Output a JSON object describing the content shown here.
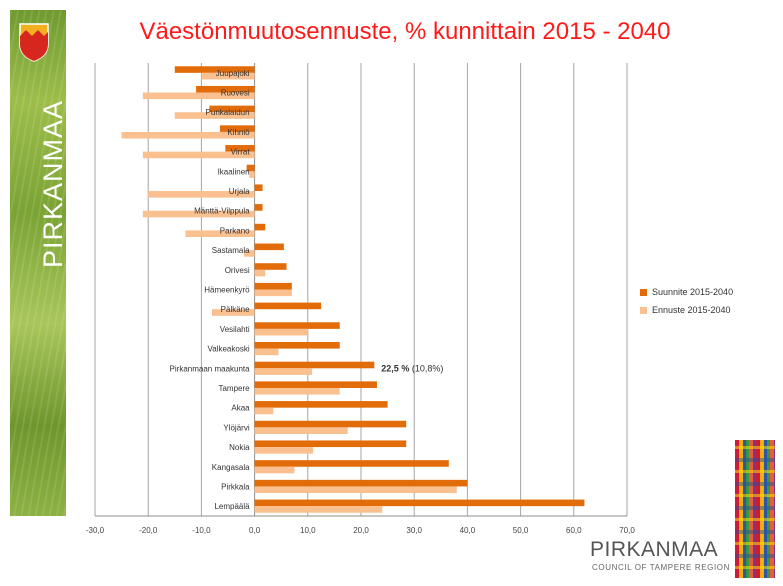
{
  "brand": {
    "side_text": "PIRKANMAA",
    "footer_name": "PIRKANMAA",
    "footer_subtitle": "COUNCIL OF TAMPERE REGION"
  },
  "colors": {
    "title": "#ff1a1a",
    "suunnite": "#e36c0a",
    "ennuste": "#fac090",
    "grid": "#a6a6a6"
  },
  "chart_data": {
    "type": "bar",
    "orientation": "horizontal",
    "title": "Väestönmuutosennuste, % kunnittain 2015 - 2040",
    "xlabel": "",
    "ylabel": "",
    "xlim": [
      -30,
      70
    ],
    "x_ticks": [
      "-30,0",
      "-20,0",
      "-10,0",
      "0,0",
      "10,0",
      "20,0",
      "30,0",
      "40,0",
      "50,0",
      "60,0",
      "70,0"
    ],
    "grid": true,
    "legend_position": "right",
    "categories": [
      "Juupajoki",
      "Ruovesi",
      "Punkalaidun",
      "Kihniö",
      "Virrat",
      "Ikaalinen",
      "Urjala",
      "Mänttä-Vilppula",
      "Parkano",
      "Sastamala",
      "Orivesi",
      "Hämeenkyrö",
      "Pälkäne",
      "Vesilahti",
      "Valkeakoski",
      "Pirkanmaan maakunta",
      "Tampere",
      "Akaa",
      "Ylöjärvi",
      "Nokia",
      "Kangasala",
      "Pirkkala",
      "Lempäälä"
    ],
    "series": [
      {
        "name": "Suunnite 2015-2040",
        "values": [
          -15,
          -11,
          -8.5,
          -6.5,
          -5.5,
          -1.5,
          1.5,
          1.5,
          2,
          5.5,
          6,
          7,
          12.5,
          16,
          16,
          22.5,
          23,
          25,
          28.5,
          28.5,
          36.5,
          40,
          62
        ]
      },
      {
        "name": "Ennuste 2015-2040",
        "values": [
          -10,
          -21,
          -15,
          -25,
          -21,
          -1,
          -20,
          -21,
          -13,
          -2,
          2,
          7,
          -8,
          10,
          4.5,
          10.8,
          16,
          3.5,
          17.5,
          11,
          7.5,
          38,
          24
        ]
      }
    ],
    "annotation": {
      "category": "Pirkanmaan maakunta",
      "bold_text": "22,5 %",
      "text": " (10,8%)"
    }
  }
}
